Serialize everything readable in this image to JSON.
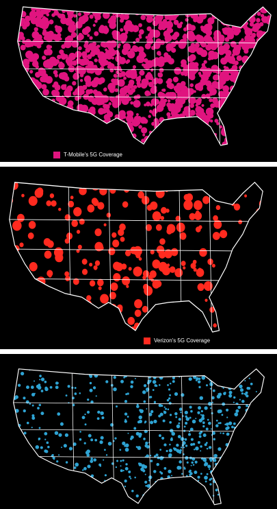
{
  "panels": [
    {
      "legend": "T-Mobile's 5G Coverage",
      "color": "#e0147f"
    },
    {
      "legend": "Verizon's 5G Coverage",
      "color": "#ff2a1f"
    },
    {
      "color": "#2ea3d3"
    }
  ]
}
